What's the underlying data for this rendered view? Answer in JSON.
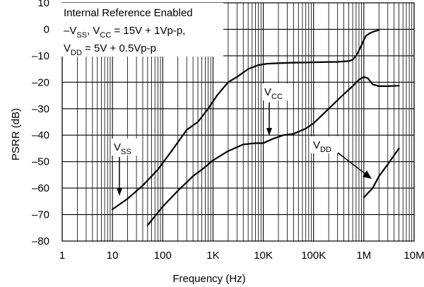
{
  "chart_data": {
    "type": "line",
    "xlabel": "Frequency (Hz)",
    "ylabel": "PSRR (dB)",
    "x_scale": "log",
    "xlim": [
      1,
      10000000
    ],
    "ylim": [
      -80,
      10
    ],
    "grid": true,
    "x_ticks": [
      {
        "value": 1,
        "label": "1"
      },
      {
        "value": 10,
        "label": "10"
      },
      {
        "value": 100,
        "label": "100"
      },
      {
        "value": 1000,
        "label": "1K"
      },
      {
        "value": 10000,
        "label": "10K"
      },
      {
        "value": 100000,
        "label": "100K"
      },
      {
        "value": 1000000,
        "label": "1M"
      },
      {
        "value": 10000000,
        "label": "10M"
      }
    ],
    "y_ticks": [
      {
        "value": 10,
        "label": "10"
      },
      {
        "value": 0,
        "label": "0"
      },
      {
        "value": -10,
        "label": "–10"
      },
      {
        "value": -20,
        "label": "–20"
      },
      {
        "value": -30,
        "label": "–30"
      },
      {
        "value": -40,
        "label": "–40"
      },
      {
        "value": -50,
        "label": "–50"
      },
      {
        "value": -60,
        "label": "–60"
      },
      {
        "value": -70,
        "label": "–70"
      },
      {
        "value": -80,
        "label": "–80"
      }
    ],
    "info_box": {
      "line1": "Internal Reference Enabled",
      "line2_a": "–V",
      "line2_sub1": "SS",
      "line2_b": ", V",
      "line2_sub2": "CC",
      "line2_c": " = 15V + 1Vp-p,",
      "line3_a": "V",
      "line3_sub": "DD",
      "line3_b": " = 5V + 0.5Vp-p"
    },
    "series": [
      {
        "annotation_main": "V",
        "annotation_sub": "SS",
        "x": [
          10,
          20,
          40,
          80,
          150,
          300,
          500,
          800,
          1200,
          2000,
          3000,
          5000,
          8000,
          12000,
          20000,
          40000,
          80000,
          150000,
          300000,
          500000,
          600000,
          700000,
          800000,
          900000,
          1000000,
          1100000,
          1300000,
          1600000,
          2000000
        ],
        "y": [
          -68,
          -64,
          -59,
          -53,
          -46,
          -38,
          -35,
          -30,
          -25,
          -20,
          -18,
          -15,
          -13.5,
          -13,
          -12.8,
          -12.6,
          -12.5,
          -12.4,
          -12.3,
          -12,
          -11.5,
          -10,
          -8,
          -6,
          -4,
          -2.5,
          -1.5,
          -0.8,
          -0.3
        ]
      },
      {
        "annotation_main": "V",
        "annotation_sub": "CC",
        "x": [
          50,
          100,
          200,
          400,
          700,
          1000,
          2000,
          4000,
          7000,
          10000,
          15000,
          25000,
          40000,
          70000,
          100000,
          200000,
          400000,
          600000,
          800000,
          1000000,
          1200000,
          1500000,
          2000000,
          3000000,
          5000000
        ],
        "y": [
          -74,
          -67,
          -61,
          -55.5,
          -52,
          -49.5,
          -46,
          -43.5,
          -43,
          -43,
          -41.5,
          -40,
          -39.5,
          -37.5,
          -35.5,
          -30,
          -24.5,
          -21.5,
          -19,
          -18,
          -18.5,
          -20.8,
          -21.5,
          -21.5,
          -21.3
        ]
      },
      {
        "annotation_main": "V",
        "annotation_sub": "DD",
        "x": [
          1000000,
          1500000,
          2000000,
          3000000,
          5000000
        ],
        "y": [
          -63.5,
          -60,
          -55.5,
          -51,
          -45
        ]
      }
    ]
  }
}
